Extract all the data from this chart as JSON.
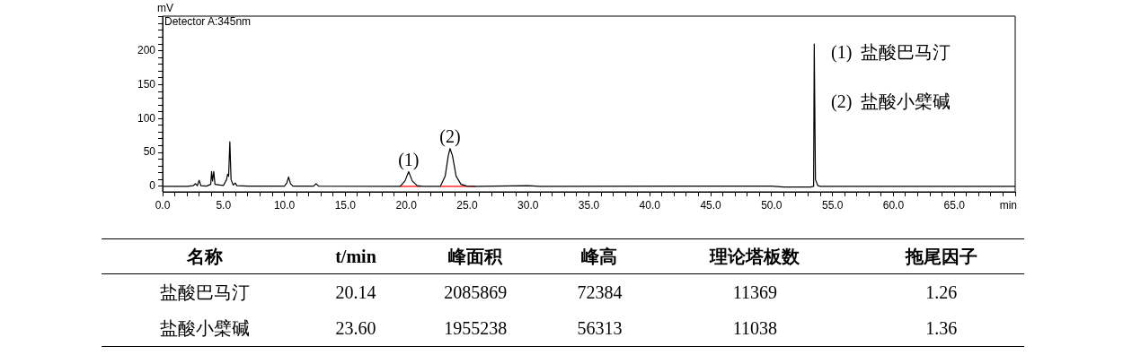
{
  "chart_data": [
    {
      "type": "line",
      "xlabel": "min",
      "ylabel": "mV",
      "xlim": [
        0,
        70
      ],
      "ylim": [
        -8,
        251
      ],
      "xticks": [
        {
          "value": 0,
          "label": "0.0"
        },
        {
          "value": 1,
          "label": null
        },
        {
          "value": 2,
          "label": null
        },
        {
          "value": 3,
          "label": null
        },
        {
          "value": 4,
          "label": null
        },
        {
          "value": 5,
          "label": "5.0"
        },
        {
          "value": 6,
          "label": null
        },
        {
          "value": 7,
          "label": null
        },
        {
          "value": 8,
          "label": null
        },
        {
          "value": 9,
          "label": null
        },
        {
          "value": 10,
          "label": "10.0"
        },
        {
          "value": 11,
          "label": null
        },
        {
          "value": 12,
          "label": null
        },
        {
          "value": 13,
          "label": null
        },
        {
          "value": 14,
          "label": null
        },
        {
          "value": 15,
          "label": "15.0"
        },
        {
          "value": 16,
          "label": null
        },
        {
          "value": 17,
          "label": null
        },
        {
          "value": 18,
          "label": null
        },
        {
          "value": 19,
          "label": null
        },
        {
          "value": 20,
          "label": "20.0"
        },
        {
          "value": 21,
          "label": null
        },
        {
          "value": 22,
          "label": null
        },
        {
          "value": 23,
          "label": null
        },
        {
          "value": 24,
          "label": null
        },
        {
          "value": 25,
          "label": "25.0"
        },
        {
          "value": 26,
          "label": null
        },
        {
          "value": 27,
          "label": null
        },
        {
          "value": 28,
          "label": null
        },
        {
          "value": 29,
          "label": null
        },
        {
          "value": 30,
          "label": "30.0"
        },
        {
          "value": 31,
          "label": null
        },
        {
          "value": 32,
          "label": null
        },
        {
          "value": 33,
          "label": null
        },
        {
          "value": 34,
          "label": null
        },
        {
          "value": 35,
          "label": "35.0"
        },
        {
          "value": 36,
          "label": null
        },
        {
          "value": 37,
          "label": null
        },
        {
          "value": 38,
          "label": null
        },
        {
          "value": 39,
          "label": null
        },
        {
          "value": 40,
          "label": "40.0"
        },
        {
          "value": 41,
          "label": null
        },
        {
          "value": 42,
          "label": null
        },
        {
          "value": 43,
          "label": null
        },
        {
          "value": 44,
          "label": null
        },
        {
          "value": 45,
          "label": "45.0"
        },
        {
          "value": 46,
          "label": null
        },
        {
          "value": 47,
          "label": null
        },
        {
          "value": 48,
          "label": null
        },
        {
          "value": 49,
          "label": null
        },
        {
          "value": 50,
          "label": "50.0"
        },
        {
          "value": 51,
          "label": null
        },
        {
          "value": 52,
          "label": null
        },
        {
          "value": 53,
          "label": null
        },
        {
          "value": 54,
          "label": null
        },
        {
          "value": 55,
          "label": "55.0"
        },
        {
          "value": 56,
          "label": null
        },
        {
          "value": 57,
          "label": null
        },
        {
          "value": 58,
          "label": null
        },
        {
          "value": 59,
          "label": null
        },
        {
          "value": 60,
          "label": "60.0"
        },
        {
          "value": 61,
          "label": null
        },
        {
          "value": 62,
          "label": null
        },
        {
          "value": 63,
          "label": null
        },
        {
          "value": 64,
          "label": null
        },
        {
          "value": 65,
          "label": "65.0"
        },
        {
          "value": 66,
          "label": null
        },
        {
          "value": 67,
          "label": null
        },
        {
          "value": 68,
          "label": null
        },
        {
          "value": 69,
          "label": null
        },
        {
          "value": 70,
          "label": null
        }
      ],
      "yticks": [
        0,
        {
          "value": 10,
          "label": null
        },
        {
          "value": 20,
          "label": null
        },
        {
          "value": 30,
          "label": null
        },
        {
          "value": 40,
          "label": null
        },
        50,
        {
          "value": 60,
          "label": null
        },
        {
          "value": 70,
          "label": null
        },
        {
          "value": 80,
          "label": null
        },
        {
          "value": 90,
          "label": null
        },
        100,
        {
          "value": 110,
          "label": null
        },
        {
          "value": 120,
          "label": null
        },
        {
          "value": 130,
          "label": null
        },
        {
          "value": 140,
          "label": null
        },
        150,
        {
          "value": 160,
          "label": null
        },
        {
          "value": 170,
          "label": null
        },
        {
          "value": 180,
          "label": null
        },
        {
          "value": 190,
          "label": null
        },
        200,
        {
          "value": 210,
          "label": null
        },
        {
          "value": 220,
          "label": null
        },
        {
          "value": 230,
          "label": null
        },
        {
          "value": 240,
          "label": null
        },
        {
          "value": 250,
          "label": null
        }
      ],
      "grid": false,
      "legend": false,
      "series": [
        {
          "color": "#000000",
          "x": [
            0,
            2.0,
            2.5,
            2.7,
            2.85,
            3.0,
            3.15,
            3.6,
            3.95,
            4.02,
            4.1,
            4.2,
            4.3,
            4.7,
            5.0,
            5.25,
            5.34,
            5.42,
            5.52,
            5.62,
            5.8,
            5.96,
            6.1,
            7.0,
            10.0,
            10.2,
            10.34,
            10.5,
            10.7,
            12.4,
            12.6,
            12.8,
            19.5,
            19.9,
            20.2,
            20.5,
            20.9,
            21.4,
            22.8,
            23.2,
            23.45,
            23.6,
            23.8,
            24.1,
            24.5,
            25.0,
            25.8,
            30,
            31,
            50,
            51,
            53.2,
            53.45,
            53.5,
            53.6,
            53.8,
            54,
            70
          ],
          "values": [
            0,
            0,
            1,
            4,
            1,
            9,
            1,
            0.5,
            3,
            22,
            8,
            22,
            3,
            2,
            1.5,
            10,
            18,
            15,
            66,
            10,
            2,
            5,
            1,
            0.5,
            0.5,
            5,
            14,
            4,
            0.5,
            0.5,
            4,
            0.5,
            0,
            8,
            21.7,
            8,
            1,
            0,
            0,
            15,
            45,
            55.8,
            45,
            15,
            3,
            0.5,
            0,
            1,
            0,
            0.5,
            -1,
            -1,
            0,
            210,
            10,
            1,
            0,
            0
          ]
        },
        {
          "color": "#ff0000",
          "x": [
            19.5,
            21.2,
            22.0,
            22.8,
            25.7
          ],
          "values": [
            0,
            0,
            null,
            0,
            0
          ]
        }
      ],
      "annotations": [
        "Detector A:345nm",
        {
          "text": "(1)",
          "x": 20.2,
          "y": 21.7
        },
        {
          "text": "(2)",
          "x": 23.6,
          "y": 55.8
        },
        "(1)  盐酸巴马汀",
        "(2)  盐酸小檗碱"
      ]
    },
    {
      "type": "other",
      "annotations": [
        "名称",
        "t/min",
        "峰面积",
        "峰高",
        "理论塔板数",
        "拖尾因子",
        "盐酸巴马汀",
        "20.14",
        "2085869",
        "72384",
        "11369",
        "1.26",
        "盐酸小檗碱",
        "23.60",
        "1955238",
        "56313",
        "11038",
        "1.36"
      ]
    }
  ]
}
